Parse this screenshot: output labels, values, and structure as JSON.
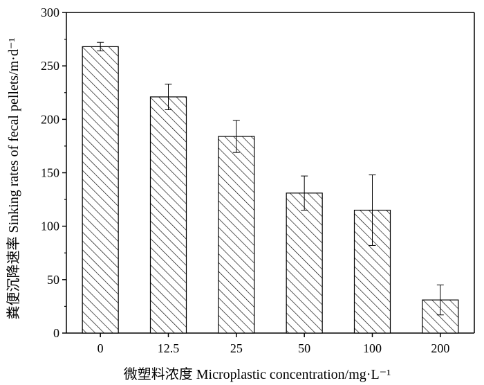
{
  "chart_data": {
    "type": "bar",
    "categories": [
      "0",
      "12.5",
      "25",
      "50",
      "100",
      "200"
    ],
    "values": [
      268,
      221,
      184,
      131,
      115,
      31
    ],
    "error": [
      4,
      12,
      15,
      16,
      33,
      14
    ],
    "xlabel": "微塑料浓度 Microplastic concentration/mg·L⁻¹",
    "ylabel": "粪便沉降速率 Sinking rates of fecal pellets/m·d⁻¹",
    "ylim": [
      0,
      300
    ],
    "yticks": [
      0,
      50,
      100,
      150,
      200,
      250,
      300
    ],
    "bar_fill": "hatched",
    "grid": false
  },
  "colors": {
    "bar_stroke": "#000000",
    "hatch": "#000000",
    "axis": "#000000"
  }
}
